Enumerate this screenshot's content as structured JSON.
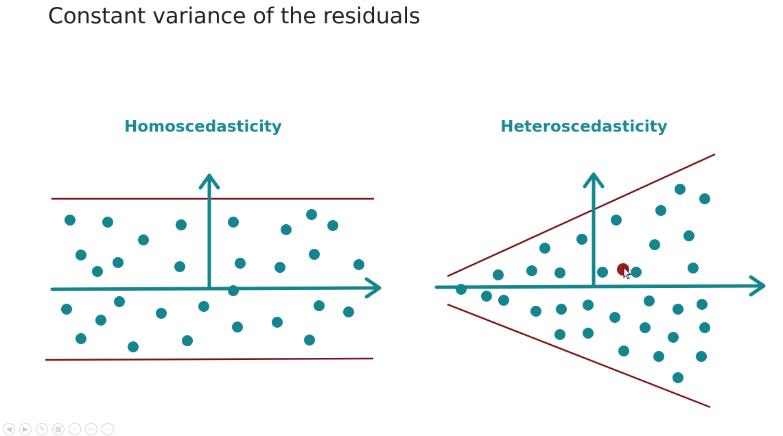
{
  "slide": {
    "title": "Constant variance of the residuals"
  },
  "colors": {
    "teal": "#14858f",
    "title_teal": "#1a8a95",
    "band_line": "#7b1416",
    "cursor_dot": "#9b1b1b"
  },
  "panels": {
    "homo": {
      "title": "Homoscedasticity"
    },
    "hetero": {
      "title": "Heteroscedasticity"
    }
  },
  "toolbar": {
    "buttons": [
      {
        "icon": "previous-icon",
        "glyph": "◀"
      },
      {
        "icon": "next-icon",
        "glyph": "▶"
      },
      {
        "icon": "pen-icon",
        "glyph": "✎"
      },
      {
        "icon": "slides-icon",
        "glyph": "▦"
      },
      {
        "icon": "zoom-icon",
        "glyph": "⌕"
      },
      {
        "icon": "subtitles-icon",
        "glyph": "▭"
      },
      {
        "icon": "more-icon",
        "glyph": "⋯"
      }
    ]
  }
}
